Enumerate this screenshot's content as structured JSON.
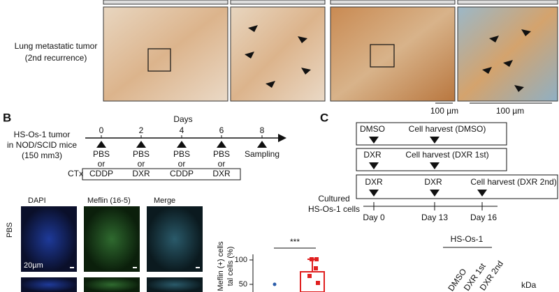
{
  "panel_a": {
    "row_label": [
      "Lung metastatic tumor",
      "(2nd recurrence)"
    ],
    "scale_bars": [
      "100 µm",
      "100 µm"
    ]
  },
  "panel_b": {
    "letter": "B",
    "axis_title": "Days",
    "days": [
      "0",
      "2",
      "4",
      "6",
      "8"
    ],
    "model": [
      "HS-Os-1 tumor",
      "in NOD/SCID mice",
      "(150 mm3)"
    ],
    "control": [
      "PBS",
      "PBS",
      "PBS",
      "PBS"
    ],
    "or": [
      "or",
      "or",
      "or",
      "or"
    ],
    "sampling": "Sampling",
    "ctx_label": "CTx",
    "ctx": [
      "CDDP",
      "DXR",
      "CDDP",
      "DXR"
    ],
    "stains": [
      "DAPI",
      "Meflin (16-5)",
      "Merge"
    ],
    "group": "PBS",
    "scale": "20µm",
    "plot": {
      "ylabel": [
        "Meflin (+) cells",
        "tal cells (%)"
      ],
      "yticks": [
        "100",
        "50"
      ],
      "significance": "***"
    }
  },
  "panel_c": {
    "letter": "C",
    "rows": [
      [
        "DMSO",
        "Cell harvest (DMSO)"
      ],
      [
        "DXR",
        "Cell harvest (DXR 1st)"
      ],
      [
        "DXR",
        "DXR",
        "Cell harvest (DXR 2nd)"
      ]
    ],
    "cells": [
      "Cultured",
      "HS-Os-1 cells"
    ],
    "days": [
      "Day 0",
      "Day 13",
      "Day 16"
    ],
    "blot_title": "HS-Os-1",
    "lanes": [
      "DMSO",
      "DXR 1st",
      "DXR 2nd"
    ],
    "unit": "kDa"
  }
}
